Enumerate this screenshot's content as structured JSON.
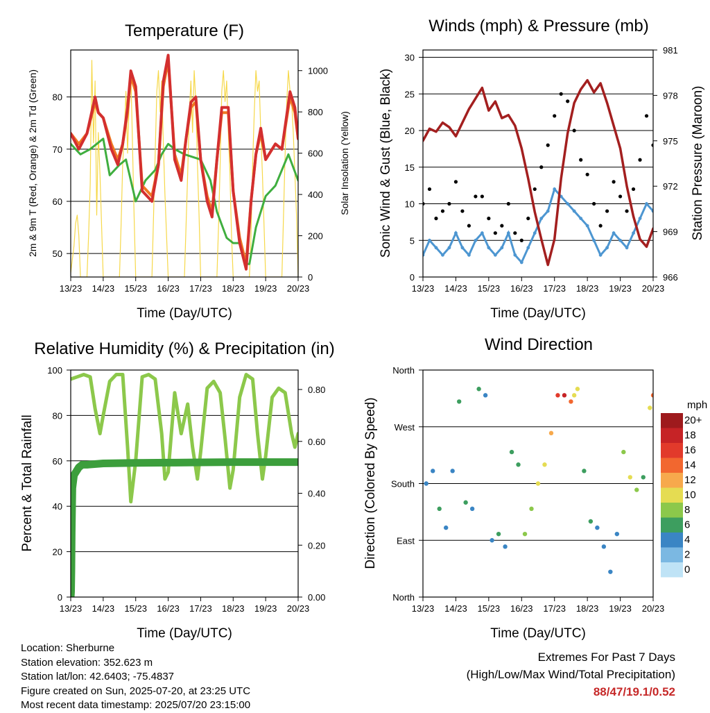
{
  "footer": {
    "location": "Location: Sherburne",
    "elevation": "Station elevation: 352.623 m",
    "latlon": "Station lat/lon: 42.6403; -75.4837",
    "created": "Figure created on Sun, 2025-07-20, at 23:25 UTC",
    "latest": "Most recent data timestamp: 2025/07/20 23:15:00",
    "extremes_title": "Extremes For Past 7 Days",
    "extremes_subtitle": "(High/Low/Max Wind/Total Precipitation)",
    "extremes_value": "88/47/19.1/0.52"
  },
  "chart_data": [
    {
      "type": "line",
      "title": "Temperature (F)",
      "xlabel": "Time (Day/UTC)",
      "ylabel": "2m & 9m T (Red, Orange) & 2m Td (Green)",
      "ylabel_right": "Solar Insolation (Yellow)",
      "x_ticks": [
        "13/23",
        "14/23",
        "15/23",
        "16/23",
        "17/23",
        "18/23",
        "19/23",
        "20/23"
      ],
      "xlim": [
        0,
        7
      ],
      "ylim": [
        45.5,
        89
      ],
      "y_ticks": [
        50,
        60,
        70,
        80
      ],
      "y2lim": [
        0,
        1100
      ],
      "y2_ticks": [
        0,
        200,
        400,
        600,
        800,
        1000
      ],
      "grid_y": [
        50,
        60,
        70,
        80
      ],
      "series": [
        {
          "name": "2m T",
          "color": "#d32f2f",
          "axis": "left",
          "x": [
            0,
            0.25,
            0.5,
            0.75,
            0.85,
            1,
            1.25,
            1.45,
            1.6,
            1.75,
            1.85,
            2,
            2.2,
            2.5,
            2.7,
            2.85,
            3,
            3.2,
            3.4,
            3.55,
            3.7,
            3.85,
            4,
            4.2,
            4.35,
            4.5,
            4.65,
            4.85,
            5,
            5.2,
            5.4,
            5.55,
            5.7,
            5.85,
            6,
            6.3,
            6.5,
            6.75,
            6.9,
            7
          ],
          "values": [
            73,
            70,
            73,
            80,
            77,
            76,
            70,
            67,
            71,
            78,
            85,
            82,
            62,
            60,
            67,
            83,
            88,
            68,
            64,
            72,
            79,
            80,
            68,
            60,
            57,
            68,
            78,
            78,
            62,
            52,
            47,
            60,
            69,
            74,
            68,
            71,
            70,
            81,
            78,
            72
          ]
        },
        {
          "name": "9m T",
          "color": "#f07822",
          "axis": "left",
          "x": [
            0,
            0.25,
            0.5,
            0.75,
            0.85,
            1,
            1.25,
            1.45,
            1.6,
            1.75,
            1.85,
            2,
            2.2,
            2.5,
            2.7,
            2.85,
            3,
            3.2,
            3.4,
            3.55,
            3.7,
            3.85,
            4,
            4.2,
            4.35,
            4.5,
            4.65,
            4.85,
            5,
            5.2,
            5.4,
            5.55,
            5.7,
            5.85,
            6,
            6.3,
            6.5,
            6.75,
            6.9,
            7
          ],
          "values": [
            73,
            71,
            73,
            79,
            77,
            76,
            71,
            68,
            71,
            77,
            84,
            81,
            63,
            61,
            67,
            82,
            87,
            69,
            65,
            72,
            78,
            79,
            68,
            61,
            58,
            68,
            77,
            77,
            62,
            53,
            48,
            60,
            69,
            73,
            68,
            71,
            70,
            80,
            77,
            72
          ]
        },
        {
          "name": "2m Td",
          "color": "#3fae3f",
          "axis": "left",
          "x": [
            0,
            0.3,
            0.6,
            1,
            1.2,
            1.5,
            1.7,
            2,
            2.3,
            2.6,
            2.8,
            3,
            3.2,
            3.5,
            4,
            4.3,
            4.5,
            4.8,
            5,
            5.2,
            5.4,
            5.5,
            5.7,
            6,
            6.3,
            6.7,
            7
          ],
          "values": [
            71,
            69,
            70,
            72,
            65,
            67,
            68,
            60,
            64,
            66,
            69,
            71,
            70,
            69,
            68,
            64,
            58,
            53,
            52,
            52,
            48,
            48,
            55,
            61,
            63,
            69,
            64
          ]
        },
        {
          "name": "Solar Insolation",
          "color": "#f6d84a",
          "axis": "right",
          "x": [
            0,
            0.1,
            0.15,
            0.2,
            0.25,
            0.3,
            0.5,
            0.55,
            0.6,
            0.65,
            0.7,
            0.75,
            0.8,
            0.85,
            0.9,
            0.95,
            1,
            1.5,
            1.55,
            1.6,
            1.65,
            1.7,
            1.75,
            1.8,
            1.85,
            1.9,
            1.95,
            2,
            2.5,
            2.55,
            2.6,
            2.65,
            2.7,
            2.75,
            2.8,
            2.85,
            2.9,
            2.95,
            3,
            3.5,
            3.55,
            3.6,
            3.65,
            3.7,
            3.75,
            3.8,
            3.85,
            3.9,
            3.95,
            4,
            4.5,
            4.55,
            4.6,
            4.65,
            4.7,
            4.75,
            4.8,
            4.85,
            4.9,
            4.95,
            5,
            5.5,
            5.55,
            5.6,
            5.65,
            5.7,
            5.75,
            5.8,
            5.85,
            5.9,
            5.95,
            6,
            6.5,
            6.55,
            6.6,
            6.65,
            6.7,
            6.75,
            6.8,
            6.85,
            6.9,
            6.95,
            7
          ],
          "values": [
            20,
            150,
            260,
            300,
            200,
            0,
            0,
            200,
            450,
            1050,
            650,
            950,
            300,
            700,
            500,
            250,
            0,
            0,
            250,
            550,
            700,
            900,
            600,
            850,
            1000,
            650,
            300,
            0,
            0,
            300,
            600,
            900,
            1000,
            800,
            950,
            650,
            400,
            200,
            0,
            0,
            250,
            500,
            800,
            950,
            700,
            1000,
            850,
            550,
            300,
            0,
            0,
            250,
            550,
            900,
            1000,
            850,
            950,
            700,
            500,
            200,
            0,
            0,
            200,
            550,
            800,
            1000,
            900,
            950,
            700,
            500,
            250,
            0,
            0,
            300,
            600,
            850,
            1000,
            900,
            850,
            700,
            500,
            300,
            0
          ]
        }
      ]
    },
    {
      "type": "scatter",
      "title": "Winds (mph) & Pressure (mb)",
      "xlabel": "Time (Day/UTC)",
      "ylabel": "Sonic Wind & Gust (Blue, Black)",
      "ylabel_right": "Station Pressure (Maroon)",
      "x_ticks": [
        "13/23",
        "14/23",
        "15/23",
        "16/23",
        "17/23",
        "18/23",
        "19/23",
        "20/23"
      ],
      "xlim": [
        0,
        7
      ],
      "ylim": [
        0,
        31
      ],
      "y_ticks": [
        0,
        5,
        10,
        15,
        20,
        25,
        30
      ],
      "y2lim": [
        966,
        981
      ],
      "y2_ticks": [
        966,
        969,
        972,
        975,
        978,
        981
      ],
      "grid_y": [
        5,
        10,
        15,
        20,
        25,
        30
      ],
      "series": [
        {
          "name": "Sonic Wind",
          "color": "#4d96d1",
          "axis": "left",
          "x": [
            0,
            0.2,
            0.4,
            0.6,
            0.8,
            1,
            1.2,
            1.4,
            1.6,
            1.8,
            2,
            2.2,
            2.4,
            2.6,
            2.8,
            3,
            3.2,
            3.4,
            3.6,
            3.8,
            4,
            4.2,
            4.4,
            4.6,
            4.8,
            5,
            5.2,
            5.4,
            5.6,
            5.8,
            6,
            6.2,
            6.4,
            6.6,
            6.8,
            7
          ],
          "values": [
            3,
            5,
            4,
            3,
            4,
            6,
            4,
            3,
            5,
            6,
            4,
            3,
            4,
            6,
            3,
            2,
            4,
            6,
            8,
            9,
            12,
            11,
            10,
            9,
            8,
            7,
            5,
            3,
            4,
            6,
            5,
            4,
            6,
            8,
            10,
            9
          ]
        },
        {
          "name": "Gust",
          "color": "#000000",
          "axis": "left",
          "x": [
            0,
            0.2,
            0.4,
            0.6,
            0.8,
            1,
            1.2,
            1.4,
            1.6,
            1.8,
            2,
            2.2,
            2.4,
            2.6,
            2.8,
            3,
            3.2,
            3.4,
            3.6,
            3.8,
            4,
            4.2,
            4.4,
            4.6,
            4.8,
            5,
            5.2,
            5.4,
            5.6,
            5.8,
            6,
            6.2,
            6.4,
            6.6,
            6.8,
            7
          ],
          "values": [
            10,
            12,
            8,
            9,
            10,
            13,
            9,
            7,
            11,
            11,
            8,
            6,
            7,
            10,
            6,
            5,
            8,
            12,
            15,
            18,
            22,
            25,
            24,
            20,
            16,
            14,
            10,
            7,
            9,
            13,
            11,
            9,
            12,
            16,
            22,
            18
          ]
        },
        {
          "name": "Station Pressure",
          "color": "#a31f1f",
          "axis": "right",
          "x": [
            0,
            0.2,
            0.4,
            0.6,
            0.8,
            1,
            1.2,
            1.4,
            1.6,
            1.8,
            2,
            2.2,
            2.4,
            2.6,
            2.8,
            3,
            3.2,
            3.4,
            3.6,
            3.8,
            4,
            4.2,
            4.4,
            4.6,
            4.8,
            5,
            5.2,
            5.4,
            5.6,
            5.8,
            6,
            6.2,
            6.4,
            6.6,
            6.8,
            7
          ],
          "values": [
            975,
            975.8,
            975.6,
            976.2,
            975.9,
            975.3,
            976.2,
            977.1,
            977.8,
            978.5,
            977,
            977.6,
            976.5,
            976.7,
            976,
            974.5,
            972.5,
            970.3,
            968.5,
            966.8,
            968.5,
            972.5,
            975.5,
            977.5,
            978.4,
            979,
            978.2,
            978.8,
            977.5,
            976,
            974.5,
            972,
            970,
            968.5,
            968,
            969.2
          ]
        }
      ]
    },
    {
      "type": "line",
      "title": "Relative Humidity (%) & Precipitation (in)",
      "xlabel": "Time (Day/UTC)",
      "ylabel": "Percent & Total Rainfall",
      "x_ticks": [
        "13/23",
        "14/23",
        "15/23",
        "16/23",
        "17/23",
        "18/23",
        "19/23",
        "20/23"
      ],
      "xlim": [
        0,
        7
      ],
      "ylim": [
        0,
        100
      ],
      "y_ticks": [
        0,
        20,
        40,
        60,
        80,
        100
      ],
      "y2lim": [
        0,
        0.875
      ],
      "y2_ticks": [
        "0.00",
        "0.20",
        "0.40",
        "0.60",
        "0.80"
      ],
      "grid_y": [
        20,
        40,
        60,
        80
      ],
      "series": [
        {
          "name": "Relative Humidity",
          "color": "#8cc84b",
          "axis": "left",
          "x": [
            0,
            0.2,
            0.4,
            0.6,
            0.75,
            0.9,
            1,
            1.2,
            1.4,
            1.6,
            1.75,
            1.85,
            2,
            2.2,
            2.4,
            2.6,
            2.8,
            2.9,
            3,
            3.2,
            3.4,
            3.6,
            3.75,
            3.9,
            4,
            4.2,
            4.4,
            4.6,
            4.75,
            4.9,
            5,
            5.2,
            5.4,
            5.6,
            5.75,
            5.9,
            6,
            6.2,
            6.4,
            6.6,
            6.8,
            6.9,
            7
          ],
          "values": [
            96,
            97,
            98,
            97,
            83,
            72,
            80,
            95,
            98,
            98,
            66,
            42,
            60,
            97,
            98,
            96,
            72,
            52,
            55,
            90,
            72,
            85,
            66,
            52,
            64,
            92,
            95,
            90,
            70,
            48,
            56,
            88,
            98,
            96,
            72,
            52,
            62,
            88,
            92,
            90,
            72,
            66,
            72
          ]
        },
        {
          "name": "Total Precipitation",
          "color": "#3c9e3c",
          "axis": "right",
          "x": [
            0,
            0.01,
            0.02,
            0.03,
            0.05,
            0.1,
            0.15,
            0.25,
            0.35,
            0.5,
            1,
            2,
            3,
            4,
            5,
            6,
            7
          ],
          "values": [
            0,
            0.02,
            0.1,
            0.25,
            0.42,
            0.47,
            0.48,
            0.5,
            0.51,
            0.51,
            0.515,
            0.517,
            0.518,
            0.519,
            0.52,
            0.52,
            0.52
          ]
        }
      ]
    },
    {
      "type": "scatter",
      "title": "Wind Direction",
      "xlabel": "Time (Day/UTC)",
      "ylabel": "Direction (Colored By Speed)",
      "x_ticks": [
        "13/23",
        "14/23",
        "15/23",
        "16/23",
        "17/23",
        "18/23",
        "19/23",
        "20/23"
      ],
      "xlim": [
        0,
        7
      ],
      "ylim": [
        0,
        360
      ],
      "y_ticks": [
        "North",
        "East",
        "South",
        "West",
        "North"
      ],
      "grid_y": [
        90,
        180,
        270
      ],
      "colorbar": {
        "title": "mph",
        "labels": [
          "20+",
          "18",
          "16",
          "14",
          "12",
          "10",
          "8",
          "6",
          "4",
          "2",
          "0"
        ],
        "colors": [
          "#9e1a1d",
          "#c62326",
          "#e23a2b",
          "#f2672f",
          "#f7a94c",
          "#e5dc52",
          "#8cc84b",
          "#3d9e5f",
          "#3a85c4",
          "#7bb8e2",
          "#bfe3f6"
        ]
      },
      "series": [
        {
          "name": "Direction",
          "x": [
            0.1,
            0.3,
            0.5,
            0.7,
            0.9,
            1.1,
            1.3,
            1.5,
            1.7,
            1.9,
            2.1,
            2.3,
            2.5,
            2.7,
            2.9,
            3.1,
            3.3,
            3.5,
            3.7,
            3.9,
            4.1,
            4.3,
            4.5,
            4.6,
            4.7,
            4.9,
            5.1,
            5.3,
            5.5,
            5.7,
            5.9,
            6.1,
            6.3,
            6.5,
            6.7,
            6.9,
            7
          ],
          "values": [
            180,
            200,
            140,
            110,
            200,
            310,
            150,
            140,
            330,
            320,
            90,
            100,
            80,
            230,
            210,
            100,
            140,
            180,
            210,
            260,
            320,
            320,
            310,
            320,
            330,
            200,
            120,
            110,
            80,
            40,
            100,
            230,
            190,
            170,
            190,
            300,
            320
          ],
          "speeds": [
            3,
            4,
            5,
            3,
            4,
            6,
            5,
            4,
            5,
            4,
            3,
            5,
            4,
            6,
            5,
            7,
            8,
            9,
            10,
            12,
            16,
            18,
            14,
            10,
            9,
            6,
            5,
            4,
            3,
            3,
            4,
            8,
            9,
            7,
            6,
            10,
            14
          ]
        }
      ]
    }
  ]
}
